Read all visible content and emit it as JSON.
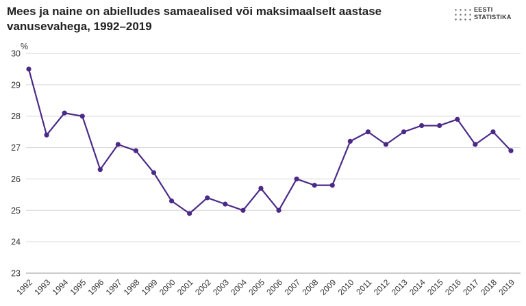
{
  "header": {
    "title": "Mees ja naine on abielludes samaealised või maksimaalselt aastase vanusevahega, 1992–2019",
    "logo_line1": "EESTI",
    "logo_line2": "STATISTIKA"
  },
  "chart_data": {
    "type": "line",
    "title": "Mees ja naine on abielludes samaealised või maksimaalselt aastase vanusevahega, 1992–2019",
    "ylabel": "%",
    "xlabel": "",
    "ylim": [
      23,
      30
    ],
    "yticks": [
      23,
      24,
      25,
      26,
      27,
      28,
      29,
      30
    ],
    "grid": true,
    "line_color": "#4b2a87",
    "categories": [
      "1992",
      "1993",
      "1994",
      "1995",
      "1996",
      "1997",
      "1998",
      "1999",
      "2000",
      "2001",
      "2002",
      "2003",
      "2004",
      "2005",
      "2006",
      "2007",
      "2008",
      "2009",
      "2010",
      "2011",
      "2012",
      "2013",
      "2014",
      "2015",
      "2016",
      "2017",
      "2018",
      "2019"
    ],
    "series": [
      {
        "values": [
          29.5,
          27.4,
          28.1,
          28.0,
          26.3,
          27.1,
          26.9,
          26.2,
          25.3,
          24.9,
          25.4,
          25.2,
          25.0,
          25.7,
          25.0,
          26.0,
          25.8,
          25.8,
          27.2,
          27.5,
          27.1,
          27.5,
          27.7,
          27.7,
          27.9,
          27.1,
          27.5,
          26.9
        ]
      }
    ]
  }
}
